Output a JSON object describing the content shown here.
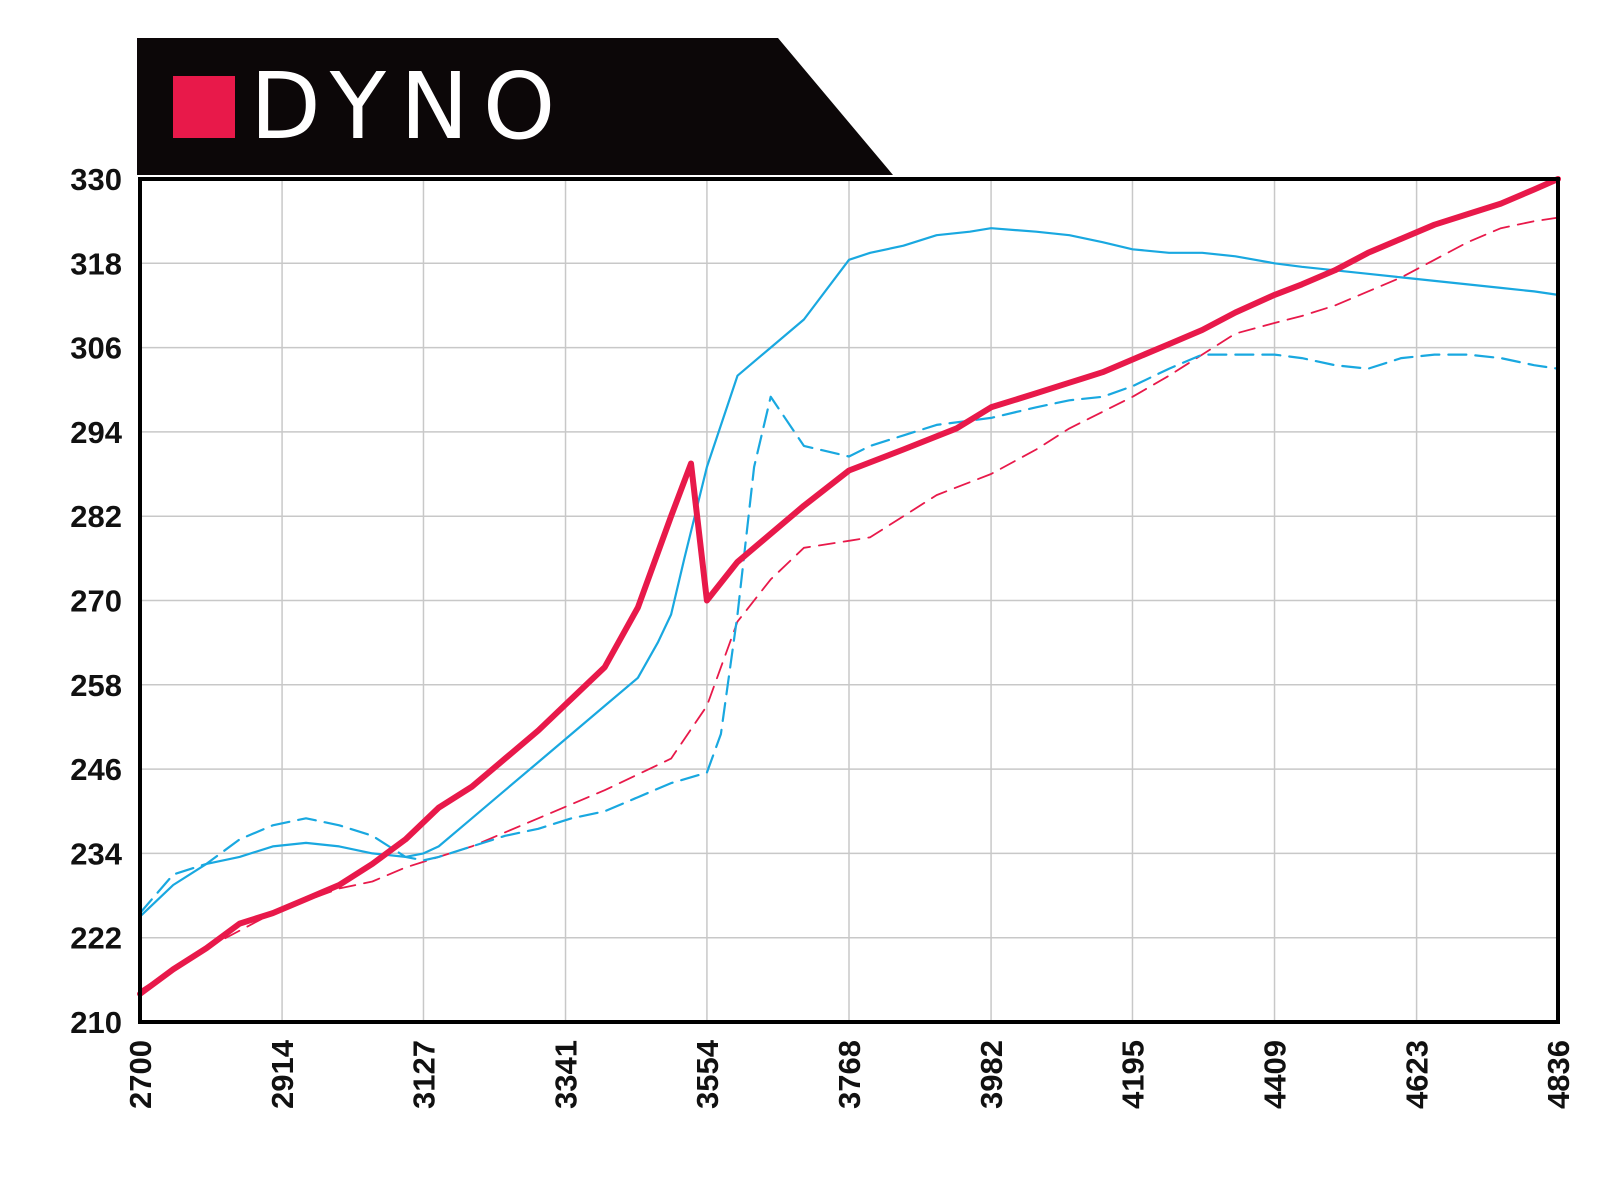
{
  "colors": {
    "accent": "#e8194a",
    "blue": "#19a8e0",
    "banner": "#0c0708",
    "frame": "#000000",
    "grid": "#c8c8c8"
  },
  "chart_data": {
    "type": "line",
    "title": "DYNO",
    "xlabel": "",
    "ylabel": "",
    "xlim": [
      2700,
      4836
    ],
    "ylim": [
      210,
      330
    ],
    "x_ticks": [
      "2700",
      "2914",
      "3127",
      "3341",
      "3554",
      "3768",
      "3982",
      "4195",
      "4409",
      "4623",
      "4836"
    ],
    "y_ticks": [
      "330",
      "318",
      "306",
      "294",
      "282",
      "270",
      "258",
      "246",
      "234",
      "222",
      "210"
    ],
    "grid": true,
    "legend": "none",
    "series": [
      {
        "style": "red-solid-thick",
        "color": "#e8194a",
        "x": [
          2700,
          2750,
          2800,
          2850,
          2900,
          2950,
          3000,
          3050,
          3100,
          3150,
          3200,
          3250,
          3300,
          3350,
          3400,
          3450,
          3500,
          3530,
          3554,
          3600,
          3650,
          3700,
          3768,
          3850,
          3930,
          3982,
          4050,
          4100,
          4150,
          4200,
          4250,
          4300,
          4350,
          4409,
          4450,
          4500,
          4550,
          4600,
          4650,
          4700,
          4750,
          4800,
          4836
        ],
        "values": [
          214,
          217.5,
          220.5,
          224,
          225.5,
          227.5,
          229.5,
          232.5,
          236,
          240.5,
          243.5,
          247.5,
          251.5,
          256,
          260.5,
          269,
          282,
          289.5,
          270,
          275.5,
          279.5,
          283.5,
          288.5,
          291.5,
          294.5,
          297.5,
          299.5,
          301,
          302.5,
          304.5,
          306.5,
          308.5,
          311,
          313.5,
          315,
          317,
          319.5,
          321.5,
          323.5,
          325,
          326.5,
          328.5,
          330
        ]
      },
      {
        "style": "red-dashed",
        "color": "#e8194a",
        "x": [
          2700,
          2800,
          2900,
          3000,
          3050,
          3100,
          3200,
          3300,
          3400,
          3500,
          3554,
          3600,
          3650,
          3700,
          3768,
          3800,
          3900,
          3982,
          4050,
          4100,
          4195,
          4250,
          4300,
          4350,
          4409,
          4450,
          4500,
          4550,
          4600,
          4650,
          4700,
          4750,
          4800,
          4836
        ],
        "values": [
          214.5,
          220.5,
          225.5,
          229,
          230,
          232,
          235,
          239,
          243,
          247.5,
          255,
          267,
          273,
          277.5,
          278.5,
          279,
          285,
          288,
          291.5,
          294.5,
          299,
          302,
          305,
          308,
          309.5,
          310.5,
          312,
          314,
          316,
          318.5,
          321,
          323,
          324,
          324.5
        ]
      },
      {
        "style": "blue-solid",
        "color": "#19a8e0",
        "x": [
          2700,
          2750,
          2800,
          2850,
          2900,
          2950,
          3000,
          3050,
          3100,
          3127,
          3150,
          3200,
          3250,
          3300,
          3350,
          3400,
          3450,
          3480,
          3500,
          3520,
          3554,
          3600,
          3650,
          3700,
          3768,
          3800,
          3850,
          3900,
          3950,
          3982,
          4050,
          4100,
          4150,
          4195,
          4250,
          4300,
          4350,
          4409,
          4450,
          4500,
          4550,
          4600,
          4650,
          4700,
          4750,
          4800,
          4836
        ],
        "values": [
          225,
          229.5,
          232.5,
          233.5,
          235,
          235.5,
          235,
          234,
          233.5,
          234,
          235,
          239,
          243,
          247,
          251,
          255,
          259,
          264,
          268,
          276,
          289,
          302,
          306,
          310,
          318.5,
          319.5,
          320.5,
          322,
          322.5,
          323,
          322.5,
          322,
          321,
          320,
          319.5,
          319.5,
          319,
          318,
          317.5,
          317,
          316.5,
          316,
          315.5,
          315,
          314.5,
          314,
          313.5
        ]
      },
      {
        "style": "blue-dashed",
        "color": "#19a8e0",
        "x": [
          2700,
          2750,
          2800,
          2850,
          2900,
          2950,
          3000,
          3050,
          3100,
          3127,
          3150,
          3200,
          3250,
          3300,
          3350,
          3400,
          3450,
          3500,
          3554,
          3575,
          3600,
          3625,
          3650,
          3700,
          3768,
          3800,
          3850,
          3900,
          3982,
          4050,
          4100,
          4150,
          4195,
          4250,
          4300,
          4350,
          4409,
          4450,
          4500,
          4550,
          4600,
          4650,
          4700,
          4750,
          4800,
          4836
        ],
        "values": [
          225.5,
          231,
          232.5,
          236,
          238,
          239,
          238,
          236.5,
          233.5,
          233,
          233.5,
          235,
          236.5,
          237.5,
          239,
          240,
          242,
          244,
          245.5,
          251,
          268,
          289,
          299,
          292,
          290.5,
          292,
          293.5,
          295,
          296,
          297.5,
          298.5,
          299,
          300.5,
          303,
          305,
          305,
          305,
          304.5,
          303.5,
          303,
          304.5,
          305,
          305,
          304.5,
          303.5,
          303
        ]
      }
    ]
  }
}
